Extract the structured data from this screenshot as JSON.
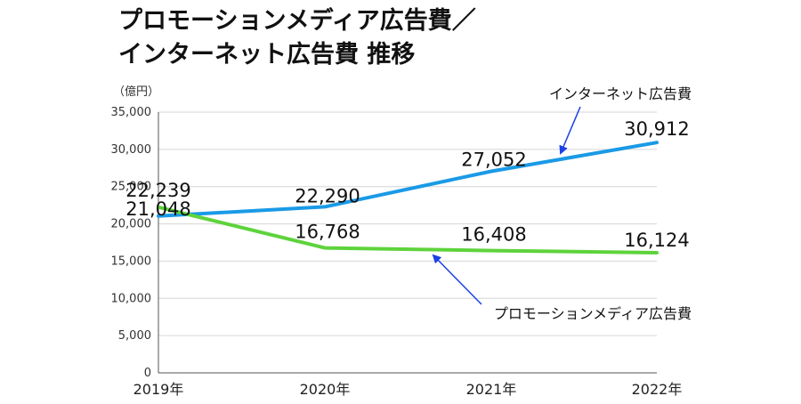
{
  "chart_data": {
    "type": "line",
    "title_lines": [
      "プロモーションメディア広告費／",
      "インターネット広告費 推移"
    ],
    "unit_label": "（億円）",
    "categories": [
      "2019年",
      "2020年",
      "2021年",
      "2022年"
    ],
    "ylim": [
      0,
      35000
    ],
    "yticks": [
      "0",
      "5,000",
      "10,000",
      "15,000",
      "20,000",
      "25,000",
      "30,000",
      "35,000"
    ],
    "grid": true,
    "series": [
      {
        "name": "インターネット広告費",
        "values": [
          21048,
          22290,
          27052,
          30912
        ],
        "labels": [
          "21,048",
          "22,290",
          "27,052",
          "30,912"
        ],
        "color": "#1a9ae6"
      },
      {
        "name": "プロモーションメディア広告費",
        "values": [
          22239,
          16768,
          16408,
          16124
        ],
        "labels": [
          "22,239",
          "16,768",
          "16,408",
          "16,124"
        ],
        "color": "#5ed33c"
      }
    ],
    "annotation_arrow_color": "#1a40e6"
  }
}
